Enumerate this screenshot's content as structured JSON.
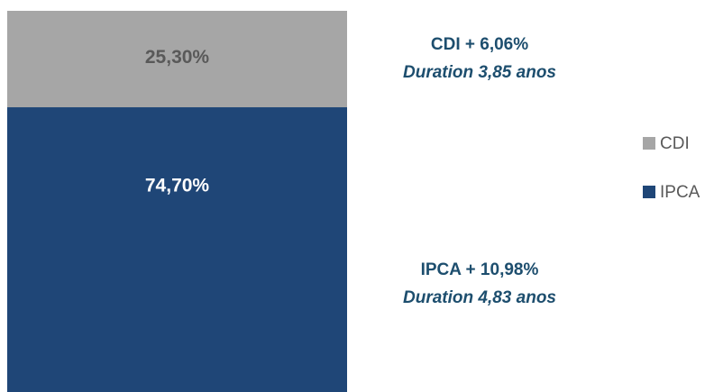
{
  "chart_data": {
    "type": "bar",
    "stacked": true,
    "categories": [
      null
    ],
    "series": [
      {
        "name": "CDI",
        "color": "#a6a6a6",
        "label_color": "#595959",
        "values": [
          25.3
        ],
        "value_labels": [
          "25,30%"
        ]
      },
      {
        "name": "IPCA",
        "color": "#1f4677",
        "label_color": "#ffffff",
        "values": [
          74.7
        ],
        "value_labels": [
          "74,70%"
        ]
      }
    ],
    "ylim": [
      0,
      100
    ],
    "annotations": [
      "CDI + 6,06%",
      "Duration 3,85 anos",
      "IPCA + 10,98%",
      "Duration 4,83 anos"
    ],
    "legend": "right"
  }
}
